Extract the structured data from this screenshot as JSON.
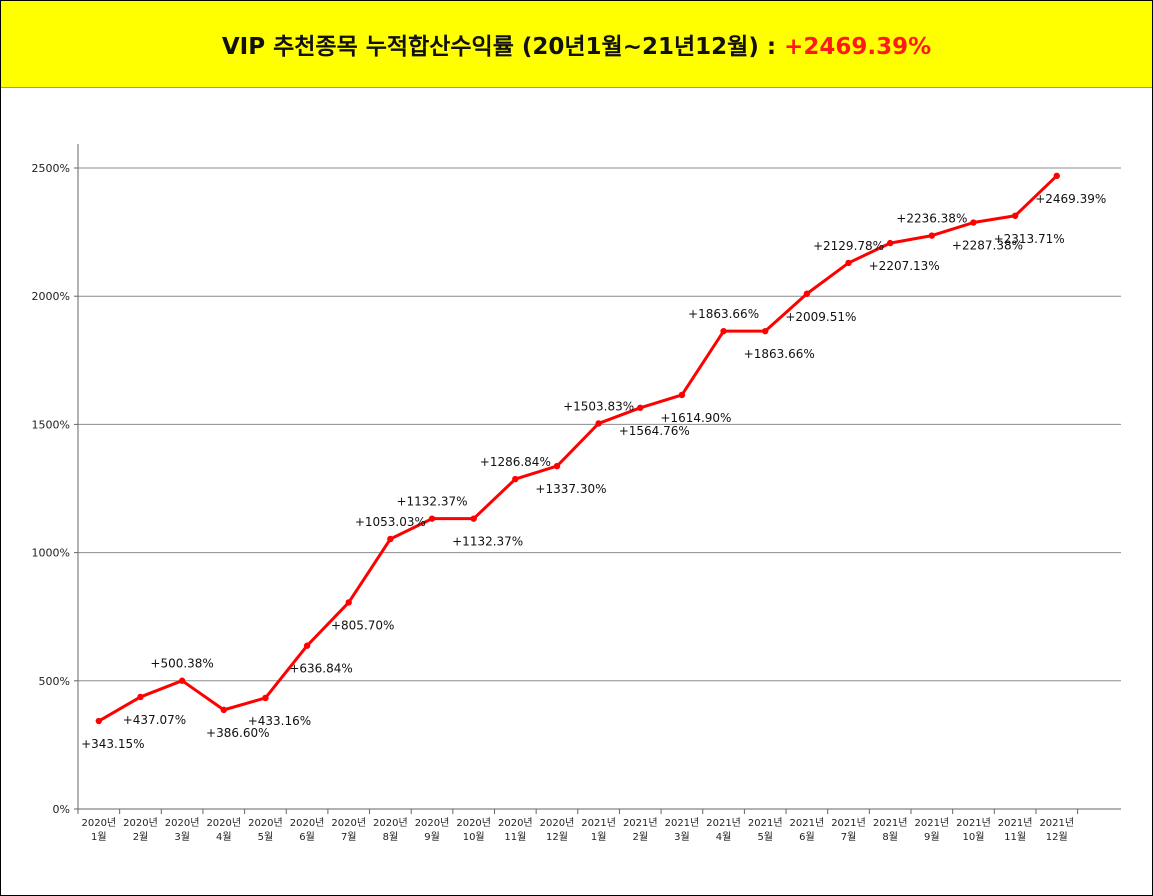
{
  "header": {
    "title": "VIP 추천종목 누적합산수익률 (20년1월~21년12월) : ",
    "highlight": "+2469.39%"
  },
  "colors": {
    "banner": "#ffff00",
    "line": "#ff0000",
    "highlight": "#ff1a1a"
  },
  "chart_data": {
    "type": "line",
    "title": "",
    "xlabel": "",
    "ylabel": "",
    "ylim": [
      0,
      2500
    ],
    "yticks": [
      0,
      500,
      1000,
      1500,
      2000,
      2500
    ],
    "ytick_labels": [
      "0%",
      "500%",
      "1000%",
      "1500%",
      "2000%",
      "2500%"
    ],
    "grid": true,
    "categories": [
      [
        "2020년",
        "1월"
      ],
      [
        "2020년",
        "2월"
      ],
      [
        "2020년",
        "3월"
      ],
      [
        "2020년",
        "4월"
      ],
      [
        "2020년",
        "5월"
      ],
      [
        "2020년",
        "6월"
      ],
      [
        "2020년",
        "7월"
      ],
      [
        "2020년",
        "8월"
      ],
      [
        "2020년",
        "9월"
      ],
      [
        "2020년",
        "10월"
      ],
      [
        "2020년",
        "11월"
      ],
      [
        "2020년",
        "12월"
      ],
      [
        "2021년",
        "1월"
      ],
      [
        "2021년",
        "2월"
      ],
      [
        "2021년",
        "3월"
      ],
      [
        "2021년",
        "4월"
      ],
      [
        "2021년",
        "5월"
      ],
      [
        "2021년",
        "6월"
      ],
      [
        "2021년",
        "7월"
      ],
      [
        "2021년",
        "8월"
      ],
      [
        "2021년",
        "9월"
      ],
      [
        "2021년",
        "10월"
      ],
      [
        "2021년",
        "11월"
      ],
      [
        "2021년",
        "12월"
      ]
    ],
    "series": [
      {
        "values": [
          343.15,
          437.07,
          500.38,
          386.6,
          433.16,
          636.84,
          805.7,
          1053.03,
          1132.37,
          1132.37,
          1286.84,
          1337.3,
          1503.83,
          1564.76,
          1614.9,
          1863.66,
          1863.66,
          2009.51,
          2129.78,
          2207.13,
          2236.38,
          2287.38,
          2313.71,
          2469.39
        ],
        "labels": [
          "+343.15%",
          "+437.07%",
          "+500.38%",
          "+386.60%",
          "+433.16%",
          "+636.84%",
          "+805.70%",
          "+1053.03%",
          "+1132.37%",
          "+1132.37%",
          "+1286.84%",
          "+1337.30%",
          "+1503.83%",
          "+1564.76%",
          "+1614.90%",
          "+1863.66%",
          "+1863.66%",
          "+2009.51%",
          "+2129.78%",
          "+2207.13%",
          "+2236.38%",
          "+2287.38%",
          "+2313.71%",
          "+2469.39%"
        ],
        "label_positions": [
          "below",
          "below",
          "above",
          "below",
          "below",
          "below",
          "below",
          "above",
          "above",
          "below",
          "above",
          "below",
          "above",
          "below",
          "below",
          "above",
          "below",
          "below",
          "above",
          "below",
          "above",
          "below",
          "below",
          "below"
        ]
      }
    ]
  }
}
